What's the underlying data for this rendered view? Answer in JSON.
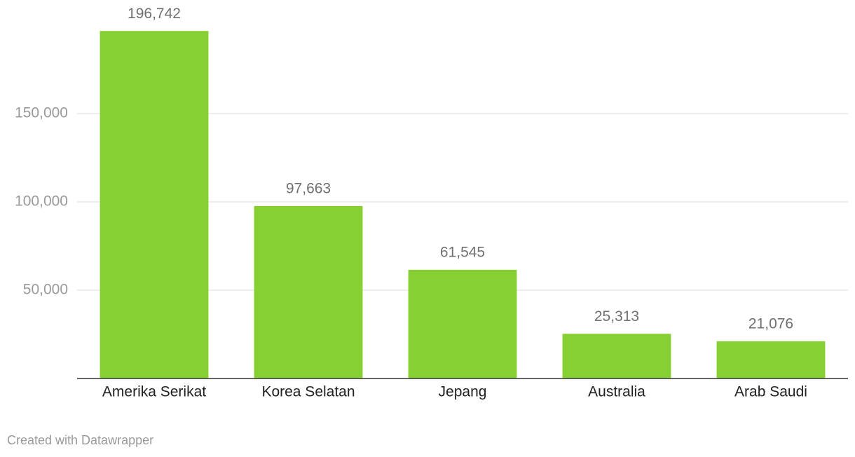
{
  "chart_data": {
    "type": "bar",
    "categories": [
      "Amerika Serikat",
      "Korea Selatan",
      "Jepang",
      "Australia",
      "Arab Saudi"
    ],
    "values": [
      196742,
      97663,
      61545,
      25313,
      21076
    ],
    "value_labels": [
      "196,742",
      "97,663",
      "61,545",
      "25,313",
      "21,076"
    ],
    "color": "#87d033",
    "ylim": [
      0,
      200000
    ],
    "yticks": [
      {
        "value": 50000,
        "label": "50,000"
      },
      {
        "value": 100000,
        "label": "100,000"
      },
      {
        "value": 150000,
        "label": "150,000"
      }
    ],
    "grid": true,
    "credit": "Created with Datawrapper"
  }
}
